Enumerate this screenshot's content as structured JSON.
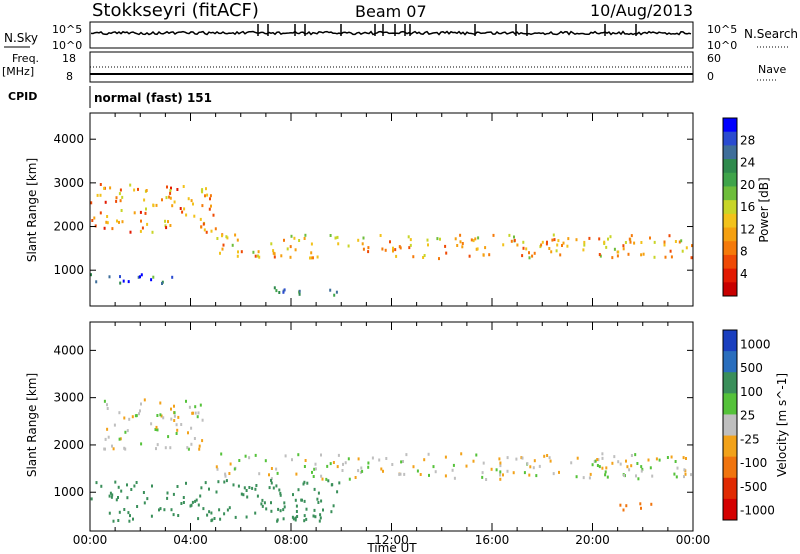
{
  "header": {
    "station": "Stokkseyri (fitACF)",
    "beam": "Beam 07",
    "date": "10/Aug/2013"
  },
  "strip_labels": {
    "nsky": "N.Sky",
    "nsky_ticks": [
      "10^5",
      "10^0"
    ],
    "nsearch": "N.Search",
    "nsearch_ticks": [
      "10^5",
      "10^0"
    ],
    "freq": "Freq.",
    "freq_unit": "[MHz]",
    "freq_ticks": [
      "18",
      "8"
    ],
    "nave": "Nave",
    "nave_ticks": [
      "60",
      "0"
    ],
    "cpid": "CPID",
    "cpid_value": "normal (fast) 151"
  },
  "chart_data": [
    {
      "type": "heatmap",
      "id": "power",
      "ylabel": "Slant Range [km]",
      "xlabel": "",
      "ylim": [
        180,
        4600
      ],
      "xlim": [
        0,
        24
      ],
      "y_ticks": [
        "1000",
        "2000",
        "3000",
        "4000"
      ],
      "x_ticks": [
        "00:00",
        "04:00",
        "08:00",
        "12:00",
        "16:00",
        "20:00",
        "00:00"
      ],
      "colorbar": {
        "label": "Power [dB]",
        "ticks": [
          "4",
          "8",
          "12",
          "16",
          "20",
          "24",
          "28"
        ],
        "colors": [
          "#0000ff",
          "#2a4bd0",
          "#3f6e9a",
          "#2f8a4d",
          "#3fa44a",
          "#6ebd3b",
          "#c8d528",
          "#f2c21b",
          "#f5a010",
          "#f57a0a",
          "#ef4a06",
          "#e31a02",
          "#c80000"
        ]
      },
      "echo_regions": [
        {
          "t0": 0.0,
          "t1": 3.5,
          "r0": 700,
          "r1": 950,
          "level": 26
        },
        {
          "t0": 6.5,
          "t1": 10.0,
          "r0": 450,
          "r1": 650,
          "level": 24
        },
        {
          "t0": 0.0,
          "t1": 5.0,
          "r0": 1900,
          "r1": 3000,
          "level": 10
        },
        {
          "t0": 5.0,
          "t1": 24.0,
          "r0": 1300,
          "r1": 1850,
          "level": 12
        }
      ]
    },
    {
      "type": "heatmap",
      "id": "velocity",
      "ylabel": "Slant Range [km]",
      "xlabel": "Time UT",
      "ylim": [
        180,
        4600
      ],
      "xlim": [
        0,
        24
      ],
      "y_ticks": [
        "1000",
        "2000",
        "3000",
        "4000"
      ],
      "x_ticks": [
        "00:00",
        "04:00",
        "08:00",
        "12:00",
        "16:00",
        "20:00",
        "00:00"
      ],
      "colorbar": {
        "label": "Velocity [m s^-1]",
        "ticks": [
          "1000",
          "500",
          "100",
          "25",
          "-25",
          "-100",
          "-500",
          "-1000"
        ],
        "colors": [
          "#1a3fbf",
          "#2a6ebd",
          "#3a8f5a",
          "#55c23a",
          "#bfbfbf",
          "#f2a21a",
          "#f0740e",
          "#e02a02",
          "#d40000"
        ]
      },
      "echo_regions": [
        {
          "t0": 0.5,
          "t1": 4.5,
          "r0": 1900,
          "r1": 3000,
          "value": 0
        },
        {
          "t0": 5.0,
          "t1": 24.0,
          "r0": 1300,
          "r1": 1850,
          "value": 0
        },
        {
          "t0": 0.0,
          "t1": 10.0,
          "r0": 400,
          "r1": 1300,
          "value": 150
        },
        {
          "t0": 21.0,
          "t1": 22.5,
          "r0": 550,
          "r1": 800,
          "value": -300
        }
      ]
    }
  ]
}
